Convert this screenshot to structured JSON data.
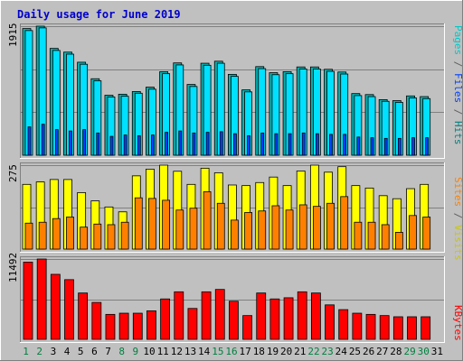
{
  "title": "Daily usage for June 2019",
  "colors": {
    "background": "#c0c0c0",
    "panel": "#c0c0c0",
    "title_text": "#0000cc",
    "hits": "#00b4b4",
    "files": "#00e0ff",
    "pages": "#0040ff",
    "visits": "#ffff00",
    "sites": "#ff8000",
    "kbytes": "#ff0000",
    "weekend_label": "#008040",
    "weekday_label": "#000000"
  },
  "legend_right": {
    "top": [
      {
        "text": "Pages",
        "color": "#00c8c8"
      },
      {
        "text": " / ",
        "color": "#606060"
      },
      {
        "text": "Files",
        "color": "#0040ff"
      },
      {
        "text": " / ",
        "color": "#606060"
      },
      {
        "text": "Hits",
        "color": "#008080"
      }
    ],
    "mid": [
      {
        "text": "Sites",
        "color": "#ff8000"
      },
      {
        "text": " / ",
        "color": "#606060"
      },
      {
        "text": "Visits",
        "color": "#c8c800"
      }
    ],
    "bottom": [
      {
        "text": "KBytes",
        "color": "#ff0000"
      }
    ]
  },
  "chart_data": {
    "type": "bar",
    "title": "Daily usage for June 2019",
    "categories": [
      "1",
      "2",
      "3",
      "4",
      "5",
      "6",
      "7",
      "8",
      "9",
      "10",
      "11",
      "12",
      "13",
      "14",
      "15",
      "16",
      "17",
      "18",
      "19",
      "20",
      "21",
      "22",
      "23",
      "24",
      "25",
      "26",
      "27",
      "28",
      "29",
      "30",
      "31"
    ],
    "weekend_days": [
      "1",
      "2",
      "8",
      "9",
      "15",
      "16",
      "22",
      "23",
      "29",
      "30"
    ],
    "panels": [
      {
        "id": "hits-files-pages",
        "ymax_label": "1915",
        "ymax": 1915,
        "series": [
          {
            "name": "Hits",
            "values": [
              1880,
              1915,
              1585,
              1530,
              1380,
              1135,
              890,
              905,
              945,
              1010,
              1240,
              1370,
              1050,
              1365,
              1395,
              1200,
              970,
              1315,
              1225,
              1240,
              1310,
              1310,
              1275,
              1235,
              915,
              900,
              825,
              810,
              880,
              870,
              null
            ]
          },
          {
            "name": "Files",
            "values": [
              1850,
              1890,
              1555,
              1500,
              1350,
              1105,
              865,
              875,
              920,
              980,
              1210,
              1340,
              1020,
              1335,
              1365,
              1170,
              940,
              1285,
              1195,
              1210,
              1280,
              1280,
              1245,
              1205,
              885,
              870,
              800,
              785,
              850,
              840,
              null
            ]
          },
          {
            "name": "Pages",
            "values": [
              420,
              460,
              380,
              360,
              380,
              330,
              280,
              300,
              290,
              300,
              340,
              360,
              330,
              340,
              350,
              320,
              290,
              330,
              320,
              320,
              330,
              320,
              310,
              310,
              270,
              260,
              250,
              250,
              260,
              260,
              null
            ]
          }
        ]
      },
      {
        "id": "visits-sites",
        "ymax_label": "275",
        "ymax": 275,
        "series": [
          {
            "name": "Visits",
            "values": [
              212,
              220,
              228,
              228,
              185,
              158,
              138,
              122,
              240,
              262,
              275,
              255,
              212,
              265,
              250,
              210,
              208,
              218,
              236,
              208,
              256,
              275,
              252,
              270,
              208,
              200,
              175,
              165,
              198,
              212,
              null
            ]
          },
          {
            "name": "Sites",
            "values": [
              85,
              88,
              100,
              105,
              72,
              82,
              80,
              88,
              168,
              166,
              160,
              128,
              134,
              188,
              150,
              95,
              120,
              125,
              142,
              128,
              145,
              140,
              150,
              172,
              88,
              88,
              80,
              55,
              110,
              105,
              null
            ]
          }
        ]
      },
      {
        "id": "kbytes",
        "ymax_label": "11492",
        "ymax": 11492,
        "series": [
          {
            "name": "KBytes",
            "values": [
              11050,
              11492,
              9300,
              8540,
              6630,
              5280,
              3570,
              3740,
              3740,
              4080,
              5780,
              6800,
              4420,
              6800,
              7140,
              5450,
              3400,
              6630,
              5780,
              5950,
              6800,
              6630,
              4930,
              4250,
              3740,
              3570,
              3400,
              3230,
              3230,
              3230,
              null
            ]
          }
        ]
      }
    ]
  }
}
